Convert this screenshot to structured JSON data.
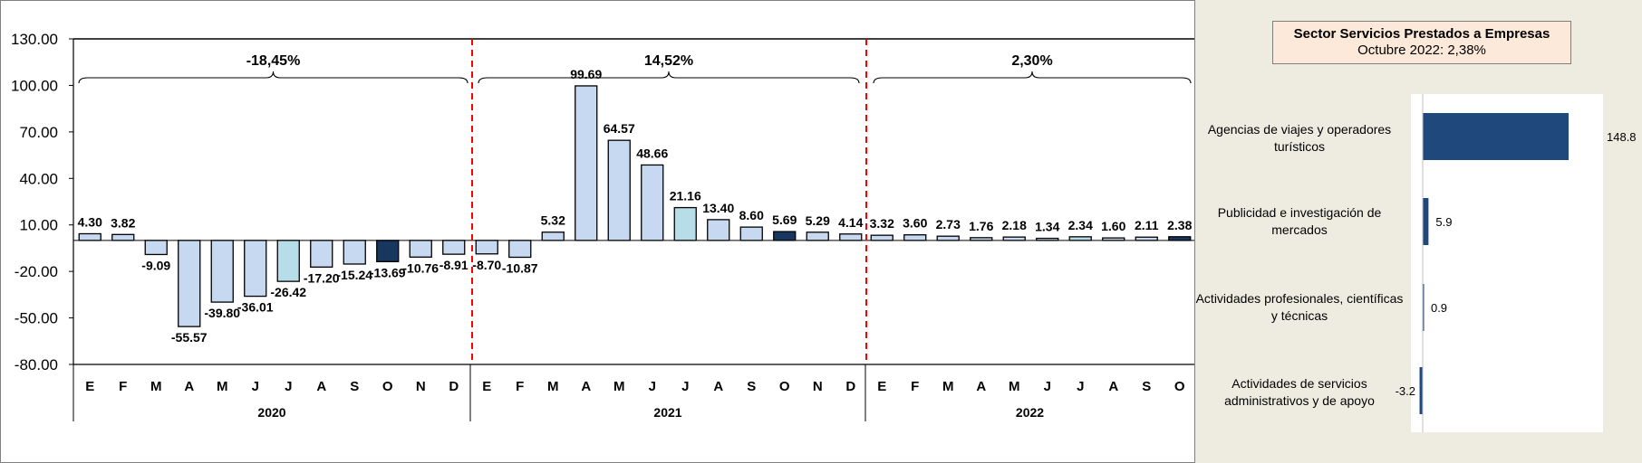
{
  "chart_data": [
    {
      "type": "bar",
      "yticks": [
        "130.00",
        "100.00",
        "70.00",
        "40.00",
        "10.00",
        "-20.00",
        "-50.00",
        "-80.00"
      ],
      "ylim": [
        -80,
        130
      ],
      "months": [
        "E",
        "F",
        "M",
        "A",
        "M",
        "J",
        "J",
        "A",
        "S",
        "O",
        "N",
        "D"
      ],
      "years": [
        {
          "year": "2020",
          "summary": "-18,45%",
          "values": [
            4.3,
            3.82,
            -9.09,
            -55.57,
            -39.8,
            -36.01,
            -26.42,
            -17.2,
            -15.24,
            -13.69,
            -10.76,
            -8.91
          ],
          "labels": [
            "4.30",
            "3.82",
            "-9.09",
            "-55.57",
            "-39.80",
            "-36.01",
            "-26.42",
            "-17.20",
            "-15.24",
            "-13.69",
            "-10.76",
            "-8.91"
          ]
        },
        {
          "year": "2021",
          "summary": "14,52%",
          "values": [
            -8.7,
            -10.87,
            5.32,
            99.69,
            64.57,
            48.66,
            21.16,
            13.4,
            8.6,
            5.69,
            5.29,
            4.14
          ],
          "labels": [
            "-8.70",
            "-10.87",
            "5.32",
            "99.69",
            "64.57",
            "48.66",
            "21.16",
            "13.40",
            "8.60",
            "5.69",
            "5.29",
            "4.14"
          ]
        },
        {
          "year": "2022",
          "summary": "2,30%",
          "values": [
            3.32,
            3.6,
            2.73,
            1.76,
            2.18,
            1.34,
            2.34,
            1.6,
            2.11,
            2.38
          ],
          "labels": [
            "3.32",
            "3.60",
            "2.73",
            "1.76",
            "2.18",
            "1.34",
            "2.34",
            "1.60",
            "2.11",
            "2.38"
          ]
        }
      ],
      "colors": {
        "default": "#c6d9f1",
        "summer": "#b7dde8",
        "highlight": "#17375e",
        "divider": "#ff0000"
      }
    },
    {
      "type": "bar",
      "orientation": "horizontal",
      "title": "Sector Servicios Prestados a  Empresas",
      "subtitle": "Octubre 2022: 2,38%",
      "categories": [
        "Agencias de viajes y operadores turísticos",
        "Publicidad e investigación de mercados",
        "Actividades profesionales, científicas y técnicas",
        "Actividades de servicios administrativos y de apoyo"
      ],
      "values": [
        148.8,
        5.9,
        0.9,
        -3.2
      ],
      "labels": [
        "148.8",
        "5.9",
        "0.9",
        "-3.2"
      ],
      "colors": {
        "bar": "#1f497d"
      }
    }
  ]
}
